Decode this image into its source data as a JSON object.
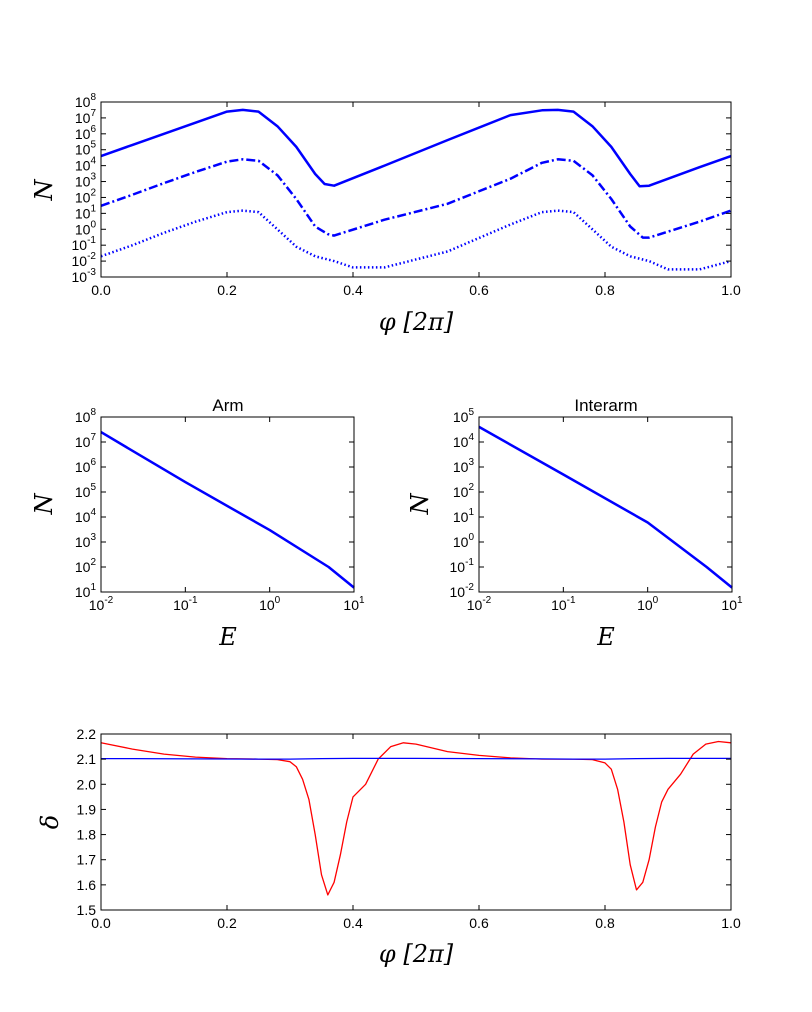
{
  "chart_data": [
    {
      "type": "line",
      "xlabel": "φ [2π]",
      "ylabel": "N",
      "xscale": "linear",
      "yscale": "log",
      "xlim": [
        0.0,
        1.0
      ],
      "ylim": [
        0.001,
        100000000
      ],
      "x_ticks": [
        "0.0",
        "0.2",
        "0.4",
        "0.6",
        "0.8",
        "1.0"
      ],
      "y_ticks": [
        {
          "base": "10",
          "exp": "8"
        },
        {
          "base": "10",
          "exp": "7"
        },
        {
          "base": "10",
          "exp": "6"
        },
        {
          "base": "10",
          "exp": "5"
        },
        {
          "base": "10",
          "exp": "4"
        },
        {
          "base": "10",
          "exp": "3"
        },
        {
          "base": "10",
          "exp": "2"
        },
        {
          "base": "10",
          "exp": "1"
        },
        {
          "base": "10",
          "exp": "0"
        },
        {
          "base": "10",
          "exp": "-1"
        },
        {
          "base": "10",
          "exp": "-2"
        },
        {
          "base": "10",
          "exp": "-3"
        }
      ],
      "series": [
        {
          "style": "solid",
          "color": "#0000ff",
          "x": [
            0.0,
            0.05,
            0.1,
            0.15,
            0.2,
            0.225,
            0.25,
            0.28,
            0.31,
            0.34,
            0.355,
            0.37,
            0.45,
            0.55,
            0.65,
            0.7,
            0.725,
            0.75,
            0.78,
            0.81,
            0.84,
            0.855,
            0.87,
            0.95,
            1.0
          ],
          "y": [
            40000,
            200000,
            1000000,
            5000000,
            25000000,
            32000000,
            25000000,
            3000000,
            150000,
            3000,
            700,
            550,
            10000,
            400000,
            15000000,
            30000000,
            32000000,
            25000000,
            3000000,
            150000,
            3000,
            500,
            550,
            8000,
            40000
          ]
        },
        {
          "style": "dashdot",
          "color": "#0000ff",
          "x": [
            0.0,
            0.05,
            0.1,
            0.15,
            0.2,
            0.225,
            0.25,
            0.28,
            0.31,
            0.34,
            0.36,
            0.37,
            0.45,
            0.55,
            0.65,
            0.7,
            0.725,
            0.75,
            0.78,
            0.81,
            0.84,
            0.86,
            0.87,
            0.95,
            1.0
          ],
          "y": [
            30,
            150,
            800,
            4000,
            18000,
            25000,
            20000,
            2500,
            80,
            1.5,
            0.5,
            0.4,
            4,
            40,
            1500,
            15000,
            25000,
            20000,
            2500,
            80,
            1.5,
            0.3,
            0.3,
            3,
            15
          ]
        },
        {
          "style": "dotted",
          "color": "#0000ff",
          "x": [
            0.0,
            0.05,
            0.1,
            0.15,
            0.2,
            0.225,
            0.25,
            0.28,
            0.31,
            0.34,
            0.37,
            0.4,
            0.45,
            0.55,
            0.65,
            0.7,
            0.725,
            0.75,
            0.78,
            0.81,
            0.84,
            0.87,
            0.9,
            0.95,
            1.0
          ],
          "y": [
            0.02,
            0.1,
            0.6,
            3,
            12,
            15,
            12,
            1,
            0.08,
            0.02,
            0.01,
            0.004,
            0.004,
            0.04,
            2,
            12,
            15,
            12,
            1,
            0.08,
            0.02,
            0.01,
            0.003,
            0.003,
            0.01
          ]
        }
      ]
    },
    {
      "type": "line",
      "title": "Arm",
      "xlabel": "E",
      "ylabel": "N",
      "xscale": "log",
      "yscale": "log",
      "xlim": [
        0.01,
        10
      ],
      "ylim": [
        10,
        100000000
      ],
      "x_ticks": [
        {
          "base": "10",
          "exp": "-2"
        },
        {
          "base": "10",
          "exp": "-1"
        },
        {
          "base": "10",
          "exp": "0"
        },
        {
          "base": "10",
          "exp": "1"
        }
      ],
      "y_ticks": [
        {
          "base": "10",
          "exp": "8"
        },
        {
          "base": "10",
          "exp": "7"
        },
        {
          "base": "10",
          "exp": "6"
        },
        {
          "base": "10",
          "exp": "5"
        },
        {
          "base": "10",
          "exp": "4"
        },
        {
          "base": "10",
          "exp": "3"
        },
        {
          "base": "10",
          "exp": "2"
        },
        {
          "base": "10",
          "exp": "1"
        }
      ],
      "series": [
        {
          "style": "solid",
          "color": "#0000ff",
          "x": [
            0.01,
            0.1,
            1,
            5,
            10
          ],
          "y": [
            25000000,
            250000,
            3000,
            100,
            15
          ]
        }
      ]
    },
    {
      "type": "line",
      "title": "Interarm",
      "xlabel": "E",
      "ylabel": "N",
      "xscale": "log",
      "yscale": "log",
      "xlim": [
        0.01,
        10
      ],
      "ylim": [
        0.01,
        100000
      ],
      "x_ticks": [
        {
          "base": "10",
          "exp": "-2"
        },
        {
          "base": "10",
          "exp": "-1"
        },
        {
          "base": "10",
          "exp": "0"
        },
        {
          "base": "10",
          "exp": "1"
        }
      ],
      "y_ticks": [
        {
          "base": "10",
          "exp": "5"
        },
        {
          "base": "10",
          "exp": "4"
        },
        {
          "base": "10",
          "exp": "3"
        },
        {
          "base": "10",
          "exp": "2"
        },
        {
          "base": "10",
          "exp": "1"
        },
        {
          "base": "10",
          "exp": "0"
        },
        {
          "base": "10",
          "exp": "-1"
        },
        {
          "base": "10",
          "exp": "-2"
        }
      ],
      "series": [
        {
          "style": "solid",
          "color": "#0000ff",
          "x": [
            0.01,
            0.1,
            1,
            5,
            10
          ],
          "y": [
            40000,
            500,
            6,
            0.1,
            0.015
          ]
        }
      ]
    },
    {
      "type": "line",
      "xlabel": "φ [2π]",
      "ylabel": "δ",
      "xscale": "linear",
      "yscale": "linear",
      "xlim": [
        0.0,
        1.0
      ],
      "ylim": [
        1.5,
        2.2
      ],
      "x_ticks": [
        "0.0",
        "0.2",
        "0.4",
        "0.6",
        "0.8",
        "1.0"
      ],
      "y_ticks": [
        "2.2",
        "2.1",
        "2.0",
        "1.9",
        "1.8",
        "1.7",
        "1.6",
        "1.5"
      ],
      "series": [
        {
          "style": "solid",
          "color": "#ff0000",
          "x": [
            0.0,
            0.05,
            0.1,
            0.15,
            0.2,
            0.25,
            0.28,
            0.3,
            0.31,
            0.32,
            0.33,
            0.34,
            0.35,
            0.36,
            0.37,
            0.38,
            0.39,
            0.4,
            0.42,
            0.44,
            0.46,
            0.48,
            0.5,
            0.55,
            0.6,
            0.65,
            0.7,
            0.75,
            0.78,
            0.8,
            0.81,
            0.82,
            0.83,
            0.84,
            0.85,
            0.86,
            0.87,
            0.88,
            0.89,
            0.9,
            0.92,
            0.94,
            0.96,
            0.98,
            1.0
          ],
          "y": [
            2.165,
            2.14,
            2.12,
            2.108,
            2.102,
            2.1,
            2.098,
            2.09,
            2.07,
            2.02,
            1.94,
            1.8,
            1.64,
            1.56,
            1.61,
            1.72,
            1.85,
            1.95,
            2.0,
            2.1,
            2.15,
            2.165,
            2.16,
            2.13,
            2.115,
            2.105,
            2.1,
            2.1,
            2.098,
            2.085,
            2.06,
            1.98,
            1.85,
            1.68,
            1.58,
            1.61,
            1.7,
            1.83,
            1.93,
            1.98,
            2.04,
            2.12,
            2.16,
            2.17,
            2.165
          ]
        },
        {
          "style": "solid",
          "color": "#0000ff",
          "x": [
            0.0,
            0.05,
            0.15,
            0.25,
            0.3,
            0.35,
            0.4,
            0.5,
            0.6,
            0.7,
            0.75,
            0.8,
            0.85,
            0.9,
            1.0
          ],
          "y": [
            2.102,
            2.102,
            2.101,
            2.1,
            2.1,
            2.102,
            2.103,
            2.103,
            2.102,
            2.101,
            2.1,
            2.1,
            2.102,
            2.103,
            2.103
          ]
        }
      ]
    }
  ]
}
